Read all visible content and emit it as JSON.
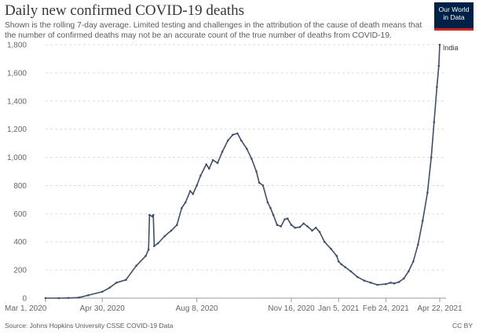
{
  "header": {
    "title": "Daily new confirmed COVID-19 deaths",
    "subtitle": "Shown is the rolling 7-day average. Limited testing and challenges in the attribution of the cause of death means that the number of confirmed deaths may not be an accurate count of the true number of deaths from COVID-19."
  },
  "logo": {
    "line1": "Our World",
    "line2": "in Data"
  },
  "footer": {
    "source": "Source: Johns Hopkins University CSSE COVID-19 Data",
    "license": "CC BY"
  },
  "colors": {
    "line": "#3d4f6a",
    "grid": "#dddddd",
    "axis": "#666666",
    "logo_bg": "#002147",
    "logo_accent": "#ce261e"
  },
  "chart_data": {
    "type": "line",
    "title": "Daily new confirmed COVID-19 deaths",
    "xlabel": "",
    "ylabel": "",
    "ylim": [
      0,
      1800
    ],
    "yticks": [
      0,
      200,
      400,
      600,
      800,
      1000,
      1200,
      1400,
      1600,
      1800
    ],
    "ytick_labels": [
      "0",
      "200",
      "400",
      "600",
      "800",
      "1,000",
      "1,200",
      "1,400",
      "1,600",
      "1,800"
    ],
    "xticks": [
      {
        "date": "2020-03-01",
        "label": "Mar 1, 2020"
      },
      {
        "date": "2020-04-30",
        "label": "Apr 30, 2020"
      },
      {
        "date": "2020-08-08",
        "label": "Aug 8, 2020"
      },
      {
        "date": "2020-11-16",
        "label": "Nov 16, 2020"
      },
      {
        "date": "2021-01-05",
        "label": "Jan 5, 2021"
      },
      {
        "date": "2021-02-24",
        "label": "Feb 24, 2021"
      },
      {
        "date": "2021-04-22",
        "label": "Apr 22, 2021"
      }
    ],
    "xlim": [
      "2020-03-01",
      "2021-04-22"
    ],
    "grid": true,
    "legend": "end-of-line label",
    "series": [
      {
        "name": "India",
        "color": "#3d4f6a",
        "points": [
          [
            "2020-03-01",
            0
          ],
          [
            "2020-03-15",
            0
          ],
          [
            "2020-03-25",
            1
          ],
          [
            "2020-04-05",
            4
          ],
          [
            "2020-04-15",
            20
          ],
          [
            "2020-04-30",
            45
          ],
          [
            "2020-05-08",
            75
          ],
          [
            "2020-05-15",
            110
          ],
          [
            "2020-05-25",
            130
          ],
          [
            "2020-06-05",
            230
          ],
          [
            "2020-06-15",
            300
          ],
          [
            "2020-06-18",
            345
          ],
          [
            "2020-06-19",
            590
          ],
          [
            "2020-06-22",
            580
          ],
          [
            "2020-06-23",
            590
          ],
          [
            "2020-06-24",
            370
          ],
          [
            "2020-06-28",
            390
          ],
          [
            "2020-07-05",
            440
          ],
          [
            "2020-07-12",
            480
          ],
          [
            "2020-07-18",
            520
          ],
          [
            "2020-07-23",
            640
          ],
          [
            "2020-07-27",
            680
          ],
          [
            "2020-08-01",
            760
          ],
          [
            "2020-08-04",
            740
          ],
          [
            "2020-08-08",
            800
          ],
          [
            "2020-08-12",
            870
          ],
          [
            "2020-08-18",
            950
          ],
          [
            "2020-08-21",
            920
          ],
          [
            "2020-08-25",
            980
          ],
          [
            "2020-08-30",
            960
          ],
          [
            "2020-09-04",
            1040
          ],
          [
            "2020-09-10",
            1120
          ],
          [
            "2020-09-15",
            1160
          ],
          [
            "2020-09-20",
            1170
          ],
          [
            "2020-09-24",
            1120
          ],
          [
            "2020-09-30",
            1060
          ],
          [
            "2020-10-05",
            990
          ],
          [
            "2020-10-10",
            900
          ],
          [
            "2020-10-13",
            820
          ],
          [
            "2020-10-17",
            800
          ],
          [
            "2020-10-22",
            680
          ],
          [
            "2020-10-25",
            640
          ],
          [
            "2020-10-28",
            590
          ],
          [
            "2020-11-01",
            520
          ],
          [
            "2020-11-05",
            510
          ],
          [
            "2020-11-09",
            560
          ],
          [
            "2020-11-12",
            565
          ],
          [
            "2020-11-16",
            520
          ],
          [
            "2020-11-20",
            500
          ],
          [
            "2020-11-25",
            505
          ],
          [
            "2020-11-29",
            530
          ],
          [
            "2020-12-03",
            510
          ],
          [
            "2020-12-08",
            480
          ],
          [
            "2020-12-12",
            500
          ],
          [
            "2020-12-16",
            470
          ],
          [
            "2020-12-21",
            400
          ],
          [
            "2020-12-28",
            350
          ],
          [
            "2021-01-03",
            300
          ],
          [
            "2021-01-05",
            260
          ],
          [
            "2021-01-08",
            240
          ],
          [
            "2021-01-12",
            220
          ],
          [
            "2021-01-18",
            190
          ],
          [
            "2021-01-25",
            150
          ],
          [
            "2021-02-01",
            125
          ],
          [
            "2021-02-08",
            110
          ],
          [
            "2021-02-15",
            95
          ],
          [
            "2021-02-24",
            100
          ],
          [
            "2021-03-01",
            110
          ],
          [
            "2021-03-05",
            105
          ],
          [
            "2021-03-10",
            115
          ],
          [
            "2021-03-15",
            140
          ],
          [
            "2021-03-20",
            190
          ],
          [
            "2021-03-25",
            260
          ],
          [
            "2021-03-30",
            380
          ],
          [
            "2021-04-04",
            550
          ],
          [
            "2021-04-09",
            750
          ],
          [
            "2021-04-13",
            1000
          ],
          [
            "2021-04-16",
            1250
          ],
          [
            "2021-04-19",
            1500
          ],
          [
            "2021-04-21",
            1650
          ],
          [
            "2021-04-22",
            1800
          ]
        ]
      }
    ]
  }
}
